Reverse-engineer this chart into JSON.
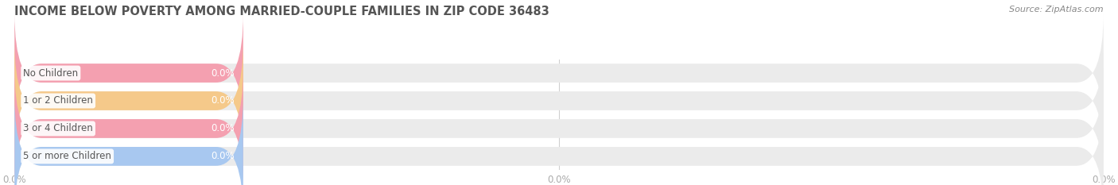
{
  "title": "INCOME BELOW POVERTY AMONG MARRIED-COUPLE FAMILIES IN ZIP CODE 36483",
  "source": "Source: ZipAtlas.com",
  "categories": [
    "No Children",
    "1 or 2 Children",
    "3 or 4 Children",
    "5 or more Children"
  ],
  "values": [
    0.0,
    0.0,
    0.0,
    0.0
  ],
  "bar_colors": [
    "#f4a0b0",
    "#f5c98a",
    "#f4a0b0",
    "#a8c8f0"
  ],
  "background_color": "#ffffff",
  "bar_bg_color": "#ebebeb",
  "tick_label_color": "#aaaaaa",
  "title_color": "#555555",
  "source_color": "#888888",
  "category_text_color": "#555555",
  "value_text_color": "#ffffff",
  "figwidth": 14.06,
  "figheight": 2.33,
  "dpi": 100
}
